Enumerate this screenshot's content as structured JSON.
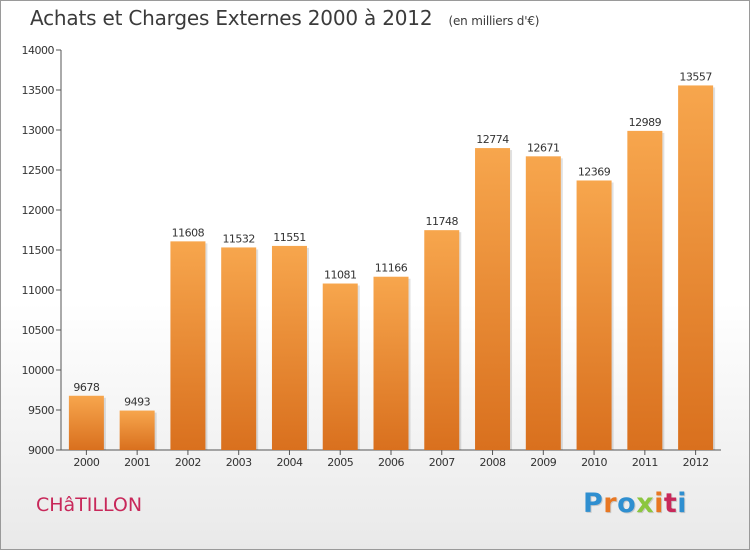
{
  "header": {
    "title": "Achats et Charges Externes 2000 à 2012",
    "subtitle": "(en milliers d'€)"
  },
  "footer": {
    "commune": "CHâTILLON",
    "logo_letters": [
      "P",
      "r",
      "o",
      "x",
      "i",
      "t",
      "i"
    ],
    "logo_colors": [
      "#2f8fd0",
      "#e87722",
      "#2f8fd0",
      "#8cc63f",
      "#e87722",
      "#c8285a",
      "#2f8fd0"
    ]
  },
  "chart_data": {
    "type": "bar",
    "categories": [
      "2000",
      "2001",
      "2002",
      "2003",
      "2004",
      "2005",
      "2006",
      "2007",
      "2008",
      "2009",
      "2010",
      "2011",
      "2012"
    ],
    "values": [
      9678,
      9493,
      11608,
      11532,
      11551,
      11081,
      11166,
      11748,
      12774,
      12671,
      12369,
      12989,
      13557
    ],
    "ylim": [
      9000,
      14000
    ],
    "yticks": [
      9000,
      9500,
      10000,
      10500,
      11000,
      11500,
      12000,
      12500,
      13000,
      13500,
      14000
    ],
    "grid": false,
    "bar_color_top": "#f7a64d",
    "bar_color_bottom": "#d9701e"
  }
}
